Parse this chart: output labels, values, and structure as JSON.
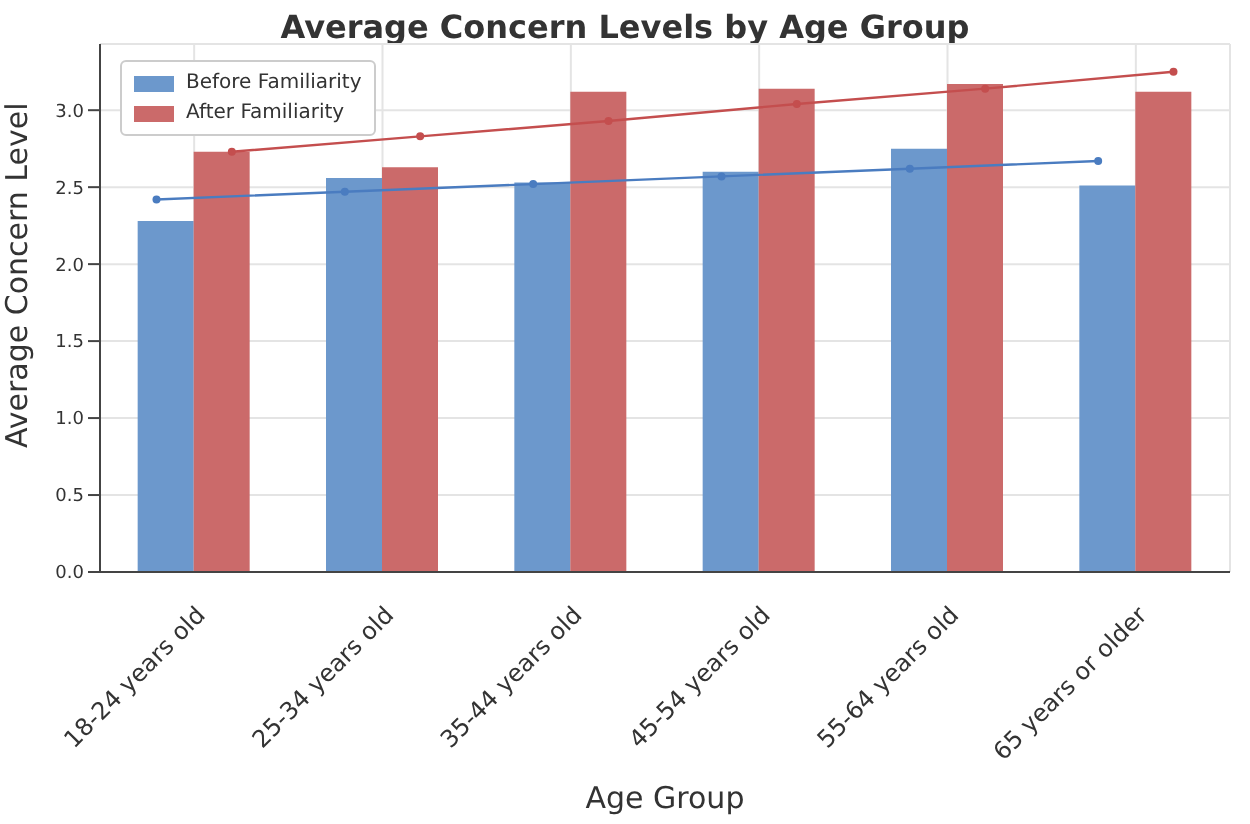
{
  "chart_data": {
    "type": "bar",
    "title": "Average Concern Levels by Age Group",
    "xlabel": "Age Group",
    "ylabel": "Average Concern Level",
    "categories": [
      "18-24 years old",
      "25-34 years old",
      "35-44 years old",
      "45-54 years old",
      "55-64 years old",
      "65 years or older"
    ],
    "series": [
      {
        "name": "Before Familiarity",
        "color": "#6c98cc",
        "values": [
          2.28,
          2.56,
          2.53,
          2.6,
          2.75,
          2.51
        ]
      },
      {
        "name": "After Familiarity",
        "color": "#cb6a6a",
        "values": [
          2.73,
          2.63,
          3.12,
          3.14,
          3.17,
          3.12
        ]
      },
      {
        "type": "line",
        "color": "#4a7cc0",
        "x": [
          "18-24 years old",
          "25-34 years old",
          "35-44 years old",
          "45-54 years old",
          "55-64 years old",
          "65 years or older"
        ],
        "values": [
          2.42,
          2.47,
          2.52,
          2.57,
          2.62,
          2.67
        ]
      },
      {
        "type": "line",
        "color": "#c44e4e",
        "x": [
          "18-24 years old",
          "25-34 years old",
          "35-44 years old",
          "45-54 years old",
          "55-64 years old",
          "65 years or older"
        ],
        "values": [
          2.73,
          2.83,
          2.93,
          3.04,
          3.14,
          3.25
        ]
      }
    ],
    "ylim": [
      0,
      3.43
    ],
    "yticks": [
      {
        "value": 0,
        "label": "0.0"
      },
      {
        "value": 0.5,
        "label": "0.5"
      },
      {
        "value": 1,
        "label": "1.0"
      },
      {
        "value": 1.5,
        "label": "1.5"
      },
      {
        "value": 2,
        "label": "2.0"
      },
      {
        "value": 2.5,
        "label": "2.5"
      },
      {
        "value": 3,
        "label": "3.0"
      }
    ],
    "grid": true,
    "legend": "top left",
    "marker": "circle"
  }
}
